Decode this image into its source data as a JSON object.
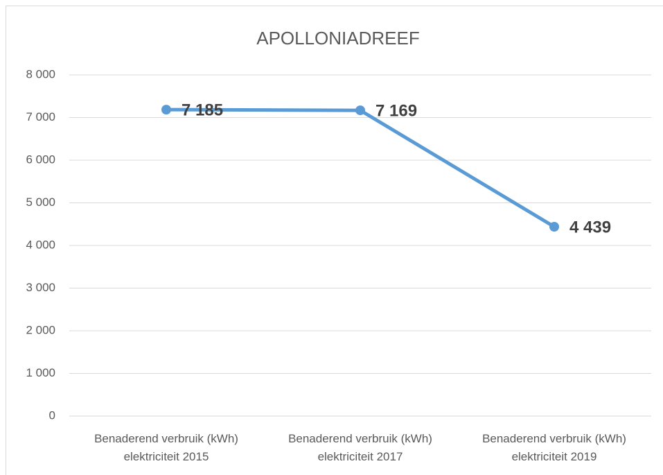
{
  "chart_data": {
    "type": "line",
    "title": "APOLLONIADREEF",
    "categories": [
      "Benaderend verbruik (kWh) elektriciteit 2015",
      "Benaderend verbruik (kWh) elektriciteit 2017",
      "Benaderend verbruik (kWh) elektriciteit 2019"
    ],
    "values": [
      7185,
      7169,
      4439
    ],
    "value_labels": [
      "7 185",
      "7 169",
      "4 439"
    ],
    "color": "#5b9bd5",
    "ylim": [
      0,
      8000
    ],
    "yticks": [
      0,
      {
        "value": 1000,
        "label": "1 000"
      },
      {
        "value": 2000,
        "label": "2 000"
      },
      {
        "value": 3000,
        "label": "3 000"
      },
      {
        "value": 4000,
        "label": "4 000"
      },
      {
        "value": 5000,
        "label": "5 000"
      },
      {
        "value": 6000,
        "label": "6 000"
      },
      {
        "value": 7000,
        "label": "7 000"
      },
      {
        "value": 8000,
        "label": "8 000"
      }
    ],
    "grid": true
  }
}
